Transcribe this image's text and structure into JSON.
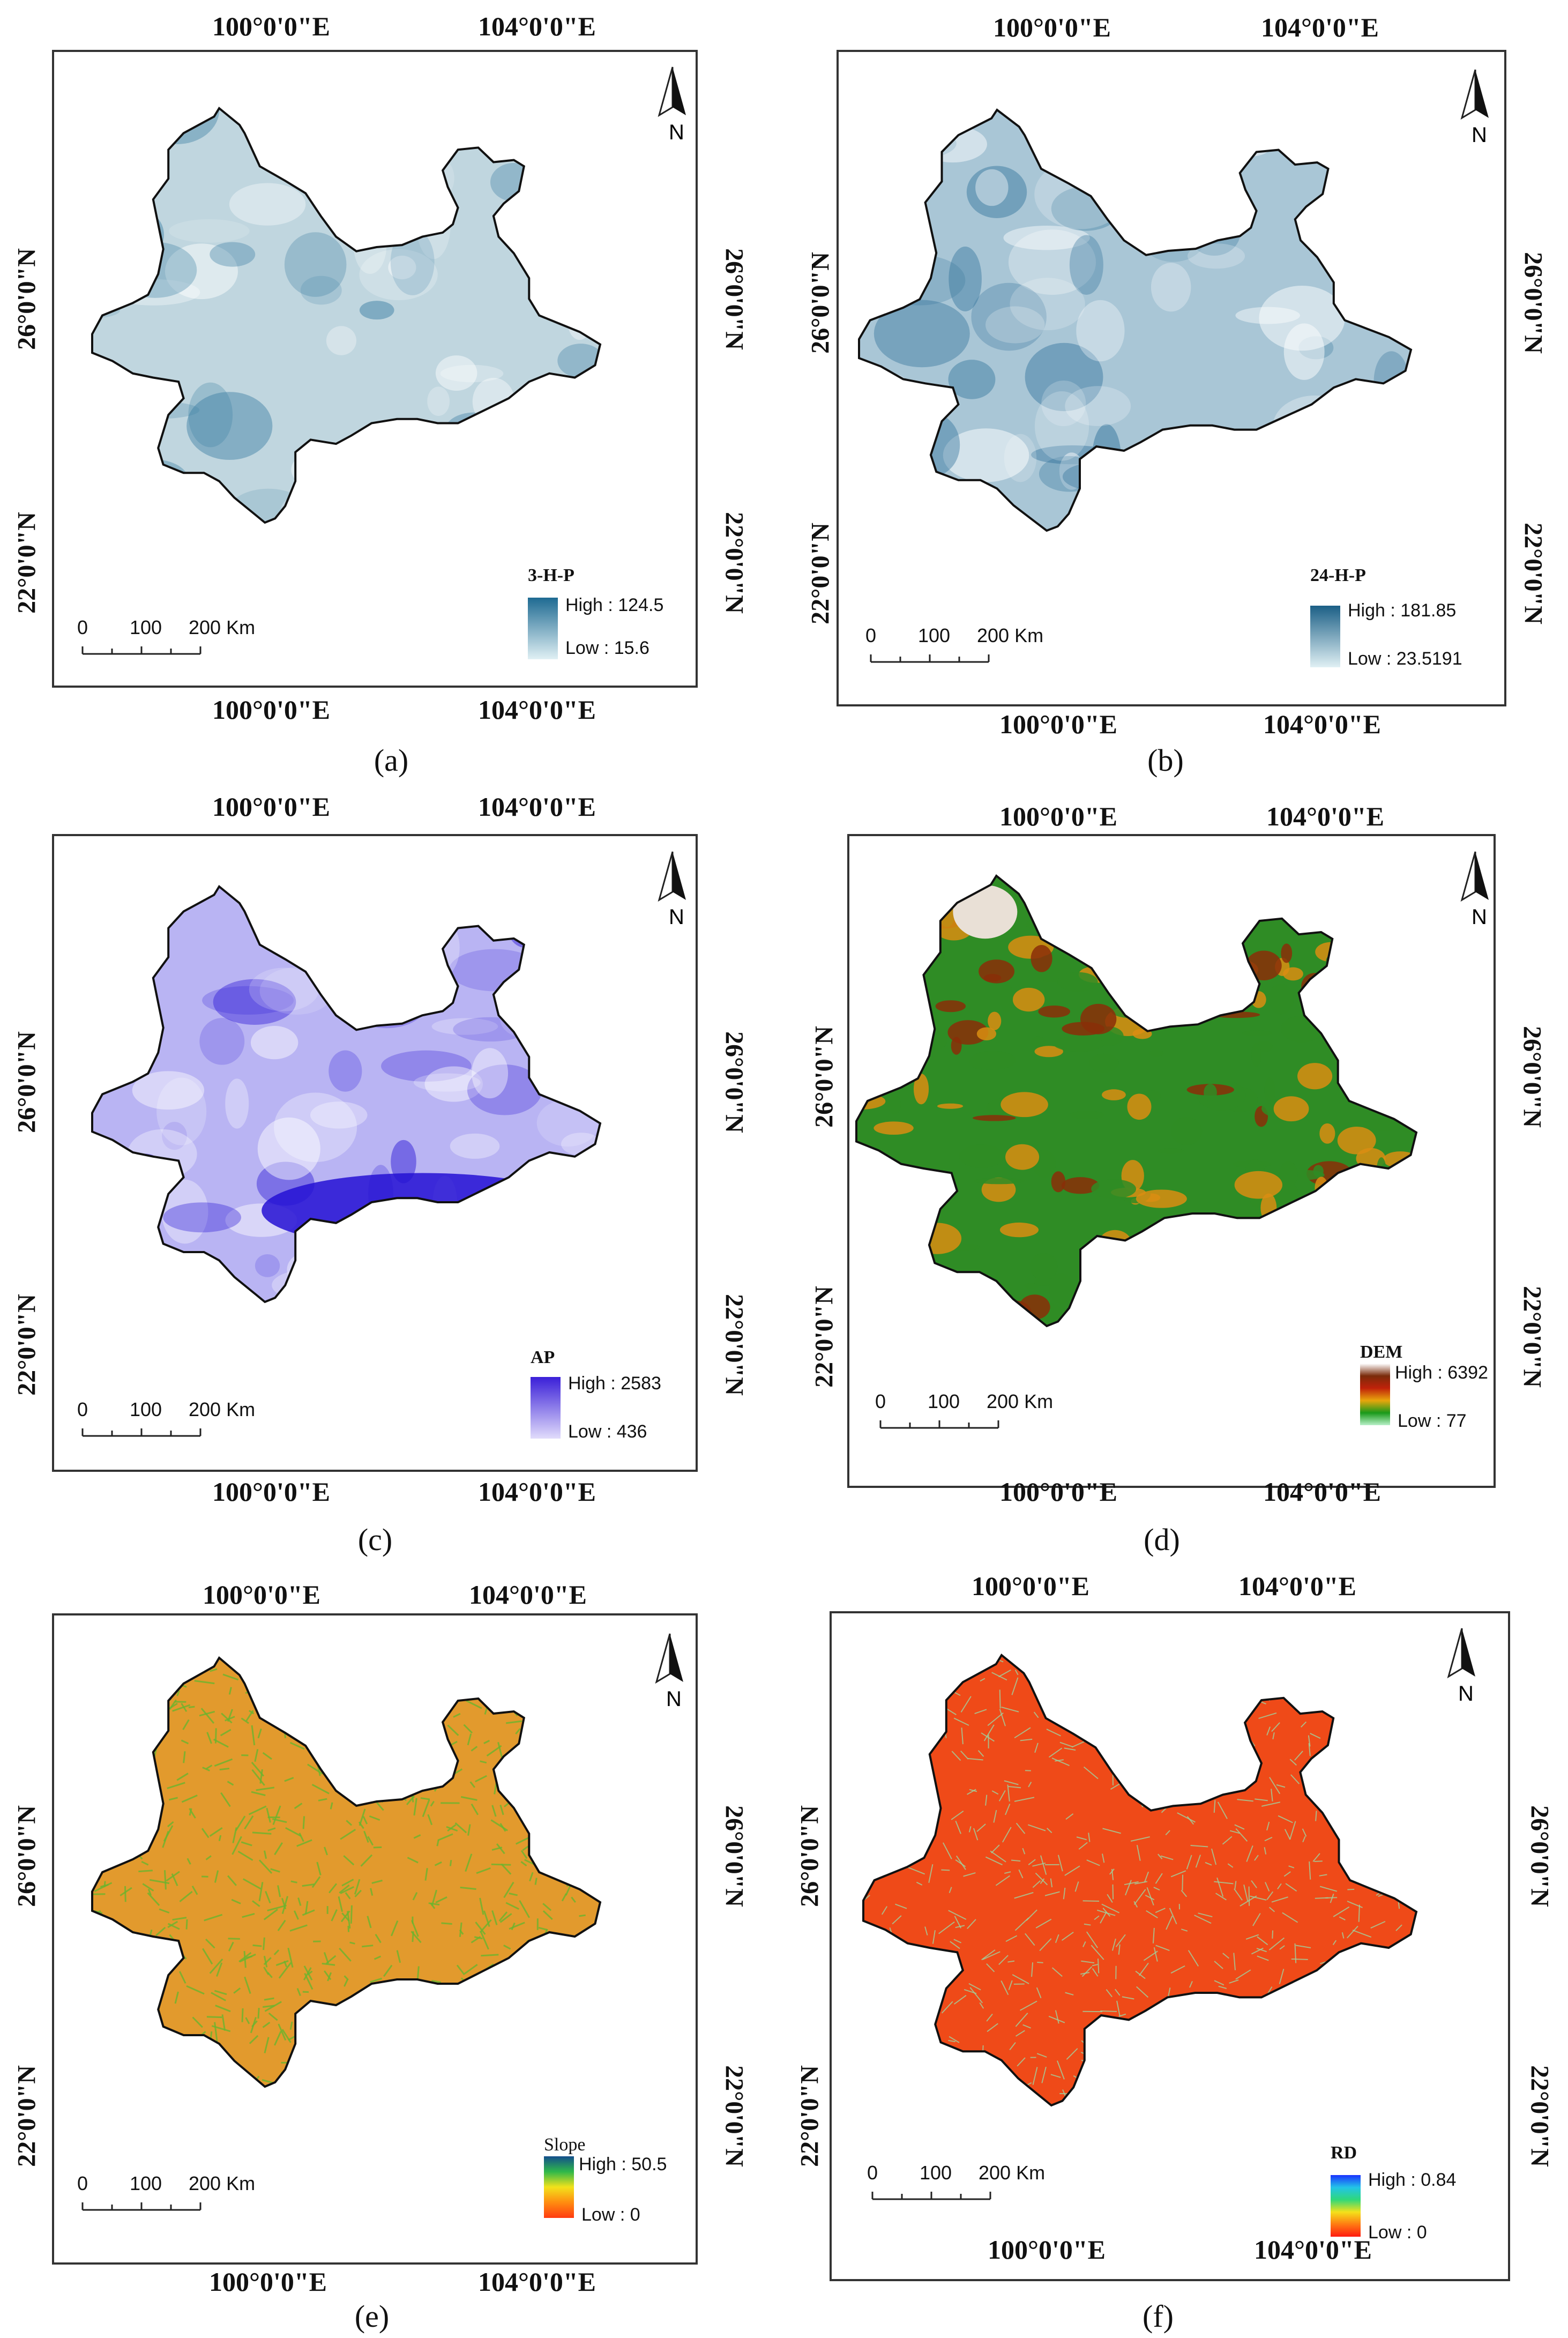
{
  "axis_labels": {
    "lon_left": "100°0'0\"E",
    "lon_right": "104°0'0\"E",
    "lat_upper": "26°0'0\"N",
    "lat_lower": "22°0'0\"N"
  },
  "north_label": "N",
  "scale": {
    "t0": "0",
    "t1": "100",
    "t2": "200 Km"
  },
  "panels": [
    {
      "id": "a",
      "caption": "(a)",
      "legend_title": "3-H-P",
      "legend_high": "High : 124.5",
      "legend_low": "Low : 15.6",
      "ramp_colors": [
        "#1e6a92",
        "#e0f0f4"
      ],
      "fill_colors": [
        "#c0d6df",
        "#3b7ea3"
      ]
    },
    {
      "id": "b",
      "caption": "(b)",
      "legend_title": "24-H-P",
      "legend_high": "High : 181.85",
      "legend_low": "Low : 23.5191",
      "ramp_colors": [
        "#1b5f86",
        "#e0f0f4"
      ],
      "fill_colors": [
        "#a9c6d6",
        "#2c6f98"
      ]
    },
    {
      "id": "c",
      "caption": "(c)",
      "legend_title": "AP",
      "legend_high": "High : 2583",
      "legend_low": "Low : 436",
      "ramp_colors": [
        "#3a1fd8",
        "#e1dcfb"
      ],
      "fill_colors": [
        "#b9b4f3",
        "#2510d4"
      ]
    },
    {
      "id": "d",
      "caption": "(d)",
      "legend_title": "DEM",
      "legend_high": "High : 6392",
      "legend_low": "Low : 77",
      "ramp_colors": [
        "#ffffff",
        "#7a2b0a",
        "#c0220a",
        "#e8a60c",
        "#1a9a1a",
        "#b8f0c8"
      ],
      "fill_colors": [
        "#2f8c25",
        "#d98d12",
        "#8a2e08"
      ]
    },
    {
      "id": "e",
      "caption": "(e)",
      "legend_title": "Slope",
      "legend_high": "High : 50.5",
      "legend_low": "Low : 0",
      "ramp_colors": [
        "#134e8c",
        "#2fb84a",
        "#f2e21b",
        "#ff8c10",
        "#ff3b10"
      ],
      "fill_colors": [
        "#e29a2d",
        "#6bb52e"
      ]
    },
    {
      "id": "f",
      "caption": "(f)",
      "legend_title": "RD",
      "legend_high": "High : 0.84",
      "legend_low": "Low : 0",
      "ramp_colors": [
        "#1a33ff",
        "#22c4e8",
        "#2fd87a",
        "#f4e11a",
        "#ff7a12",
        "#ff1a10"
      ],
      "fill_colors": [
        "#ef4a18",
        "#9fd3a0"
      ]
    }
  ]
}
